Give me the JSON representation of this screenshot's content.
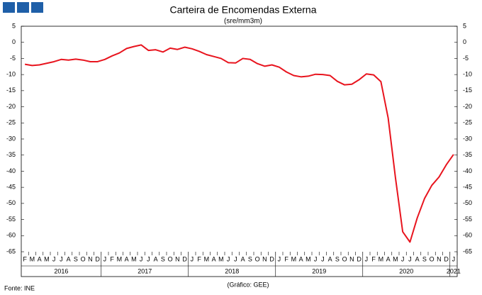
{
  "chart_data": {
    "type": "line",
    "title": "Carteira de Encomendas  Externa",
    "subtitle": "(sre/mm3m)",
    "source": "Fonte:  INE",
    "credit": "(Gráfico:  GEE)",
    "groups": [
      {
        "label": "2016",
        "months": [
          "F",
          "M",
          "A",
          "M",
          "J",
          "J",
          "A",
          "S",
          "O",
          "N",
          "D"
        ]
      },
      {
        "label": "2017",
        "months": [
          "J",
          "F",
          "M",
          "A",
          "M",
          "J",
          "J",
          "A",
          "S",
          "O",
          "N",
          "D"
        ]
      },
      {
        "label": "2018",
        "months": [
          "J",
          "F",
          "M",
          "A",
          "M",
          "J",
          "J",
          "A",
          "S",
          "O",
          "N",
          "D"
        ]
      },
      {
        "label": "2019",
        "months": [
          "J",
          "F",
          "M",
          "A",
          "M",
          "J",
          "J",
          "A",
          "S",
          "O",
          "N",
          "D"
        ]
      },
      {
        "label": "2020",
        "months": [
          "J",
          "F",
          "M",
          "A",
          "M",
          "J",
          "J",
          "A",
          "S",
          "O",
          "N",
          "D"
        ]
      },
      {
        "label": "2021",
        "months": [
          "J"
        ]
      }
    ],
    "values": [
      -6.8,
      -7.2,
      -7.0,
      -6.5,
      -6.0,
      -5.3,
      -5.5,
      -5.2,
      -5.5,
      -6.0,
      -6.0,
      -5.3,
      -4.2,
      -3.3,
      -1.9,
      -1.3,
      -0.8,
      -2.5,
      -2.3,
      -3.0,
      -1.8,
      -2.2,
      -1.5,
      -2.0,
      -2.8,
      -3.8,
      -4.4,
      -5.0,
      -6.3,
      -6.4,
      -5.0,
      -5.3,
      -6.6,
      -7.4,
      -7.0,
      -7.7,
      -9.2,
      -10.3,
      -10.7,
      -10.5,
      -9.9,
      -10.0,
      -10.3,
      -12.1,
      -13.2,
      -13.0,
      -11.6,
      -9.8,
      -10.1,
      -12.2,
      -23.5,
      -42,
      -58.8,
      -62,
      -54.5,
      -48.5,
      -44.4,
      -41.8,
      -38,
      -34.8
    ],
    "color": "#e8141e",
    "ylim": [
      -65,
      5
    ],
    "yticks": [
      5,
      0,
      -5,
      -10,
      -15,
      -20,
      -25,
      -30,
      -35,
      -40,
      -45,
      -50,
      -55,
      -60,
      -65
    ],
    "grid": false
  }
}
